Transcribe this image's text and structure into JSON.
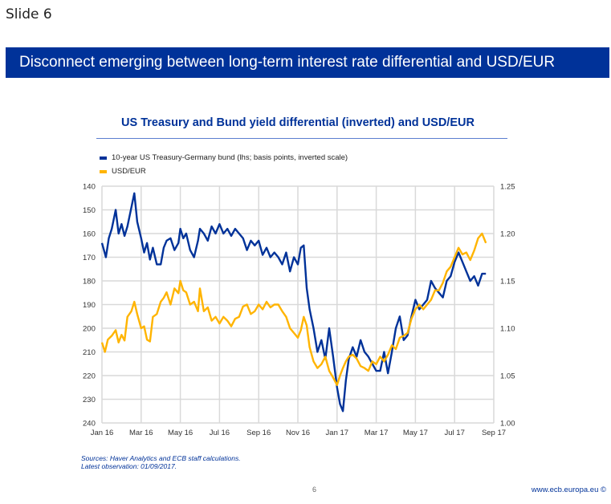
{
  "slide": {
    "label": "Slide 6",
    "page_number": "6",
    "url": "www.ecb.europa.eu ©"
  },
  "banner": {
    "title": "Disconnect emerging between long-term interest rate differential and USD/EUR",
    "color": "#003299"
  },
  "source_note": {
    "line1": "Sources: Haver Analytics and ECB staff calculations.",
    "line2": "Latest observation: 01/09/2017."
  },
  "chart_data": {
    "type": "line",
    "title": "US Treasury and Bund yield differential (inverted) and USD/EUR",
    "xlabel": "",
    "ylabel_left": "basis points, inverted scale",
    "ylabel_right": "USD/EUR",
    "grid": true,
    "legend_position": "top-left",
    "x_tick_labels": [
      "Jan 16",
      "Mar 16",
      "May 16",
      "Jul 16",
      "Sep 16",
      "Nov 16",
      "Jan 17",
      "Mar 17",
      "May 17",
      "Jul 17",
      "Sep 17"
    ],
    "x_range_months": [
      0,
      20
    ],
    "y_left": {
      "range": [
        140,
        240
      ],
      "inverted": true,
      "ticks": [
        "140",
        "150",
        "160",
        "170",
        "180",
        "190",
        "200",
        "210",
        "220",
        "230",
        "240"
      ]
    },
    "y_right": {
      "range": [
        1.0,
        1.25
      ],
      "ticks": [
        "1.25",
        "1.20",
        "1.15",
        "1.10",
        "1.05",
        "1.00"
      ]
    },
    "series": [
      {
        "name": "10-year US Treasury-Germany bund (lhs; basis points, inverted scale)",
        "axis": "left",
        "color": "#003299",
        "x_months": [
          0,
          0.2,
          0.35,
          0.5,
          0.7,
          0.85,
          1.0,
          1.15,
          1.3,
          1.5,
          1.65,
          1.8,
          2.0,
          2.15,
          2.3,
          2.45,
          2.6,
          2.8,
          3.0,
          3.15,
          3.3,
          3.5,
          3.7,
          3.9,
          4.0,
          4.15,
          4.3,
          4.5,
          4.7,
          4.9,
          5.0,
          5.2,
          5.4,
          5.6,
          5.8,
          6.0,
          6.2,
          6.4,
          6.6,
          6.8,
          7.0,
          7.2,
          7.4,
          7.6,
          7.8,
          8.0,
          8.2,
          8.4,
          8.6,
          8.8,
          9.0,
          9.2,
          9.4,
          9.6,
          9.8,
          10.0,
          10.15,
          10.3,
          10.45,
          10.6,
          10.8,
          11.0,
          11.2,
          11.4,
          11.6,
          11.8,
          12.0,
          12.15,
          12.3,
          12.45,
          12.6,
          12.8,
          13.0,
          13.2,
          13.4,
          13.6,
          13.8,
          14.0,
          14.2,
          14.4,
          14.6,
          14.8,
          15.0,
          15.2,
          15.4,
          15.6,
          15.8,
          16.0,
          16.2,
          16.4,
          16.6,
          16.8,
          17.0,
          17.2,
          17.4,
          17.6,
          17.8,
          18.0,
          18.2,
          18.4,
          18.6,
          18.8,
          19.0,
          19.2,
          19.4,
          19.6,
          19.8,
          20.0
        ],
        "values": [
          164,
          170,
          162,
          158,
          150,
          160,
          156,
          161,
          157,
          149,
          143,
          155,
          162,
          168,
          164,
          171,
          166,
          173,
          173,
          166,
          163,
          162,
          167,
          164,
          158,
          162,
          160,
          167,
          170,
          163,
          158,
          160,
          163,
          157,
          160,
          156,
          160,
          158,
          161,
          158,
          160,
          162,
          167,
          163,
          165,
          163,
          169,
          166,
          170,
          168,
          170,
          173,
          168,
          176,
          170,
          173,
          166,
          165,
          183,
          192,
          200,
          210,
          205,
          213,
          200,
          212,
          225,
          232,
          235,
          222,
          213,
          208,
          212,
          205,
          210,
          212,
          215,
          218,
          218,
          210,
          219,
          210,
          200,
          195,
          205,
          203,
          195,
          188,
          192,
          190,
          188,
          180,
          183,
          185,
          187,
          180,
          178,
          172,
          168,
          172,
          176,
          180,
          178,
          182,
          177,
          177
        ]
      },
      {
        "name": "USD/EUR",
        "axis": "right",
        "color": "#ffb400",
        "x_months": [
          0,
          0.15,
          0.3,
          0.5,
          0.7,
          0.85,
          1.0,
          1.15,
          1.3,
          1.5,
          1.65,
          1.8,
          2.0,
          2.15,
          2.3,
          2.45,
          2.6,
          2.8,
          3.0,
          3.15,
          3.3,
          3.5,
          3.7,
          3.9,
          4.0,
          4.15,
          4.3,
          4.5,
          4.7,
          4.9,
          5.0,
          5.2,
          5.4,
          5.6,
          5.8,
          6.0,
          6.2,
          6.4,
          6.6,
          6.8,
          7.0,
          7.2,
          7.4,
          7.6,
          7.8,
          8.0,
          8.2,
          8.4,
          8.6,
          8.8,
          9.0,
          9.2,
          9.4,
          9.6,
          9.8,
          10.0,
          10.15,
          10.3,
          10.45,
          10.6,
          10.8,
          11.0,
          11.2,
          11.4,
          11.6,
          11.8,
          12.0,
          12.15,
          12.3,
          12.45,
          12.6,
          12.8,
          13.0,
          13.2,
          13.4,
          13.6,
          13.8,
          14.0,
          14.2,
          14.4,
          14.6,
          14.8,
          15.0,
          15.2,
          15.4,
          15.6,
          15.8,
          16.0,
          16.2,
          16.4,
          16.6,
          16.8,
          17.0,
          17.2,
          17.4,
          17.6,
          17.8,
          18.0,
          18.2,
          18.4,
          18.6,
          18.8,
          19.0,
          19.2,
          19.4,
          19.6,
          19.8,
          20.0
        ],
        "values": [
          1.085,
          1.075,
          1.088,
          1.092,
          1.098,
          1.085,
          1.093,
          1.087,
          1.112,
          1.118,
          1.128,
          1.115,
          1.1,
          1.102,
          1.088,
          1.086,
          1.112,
          1.115,
          1.128,
          1.132,
          1.138,
          1.125,
          1.142,
          1.137,
          1.15,
          1.14,
          1.138,
          1.125,
          1.128,
          1.118,
          1.142,
          1.118,
          1.122,
          1.108,
          1.112,
          1.105,
          1.112,
          1.108,
          1.102,
          1.11,
          1.112,
          1.123,
          1.125,
          1.115,
          1.118,
          1.125,
          1.12,
          1.128,
          1.122,
          1.125,
          1.125,
          1.118,
          1.112,
          1.1,
          1.095,
          1.09,
          1.098,
          1.112,
          1.103,
          1.08,
          1.065,
          1.058,
          1.062,
          1.07,
          1.055,
          1.048,
          1.04,
          1.05,
          1.058,
          1.065,
          1.07,
          1.072,
          1.068,
          1.06,
          1.058,
          1.055,
          1.065,
          1.062,
          1.07,
          1.065,
          1.072,
          1.082,
          1.078,
          1.09,
          1.092,
          1.095,
          1.11,
          1.12,
          1.125,
          1.12,
          1.125,
          1.13,
          1.14,
          1.14,
          1.148,
          1.16,
          1.165,
          1.175,
          1.185,
          1.178,
          1.18,
          1.172,
          1.182,
          1.195,
          1.2,
          1.19
        ]
      }
    ]
  }
}
